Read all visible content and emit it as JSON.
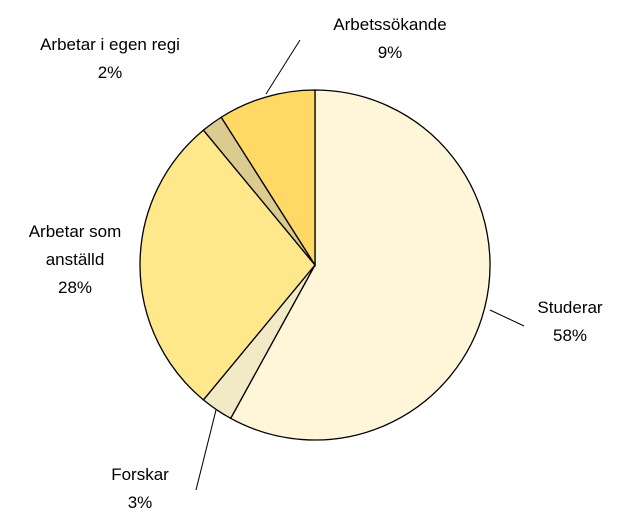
{
  "chart_data": {
    "type": "pie",
    "categories": [
      "Studerar",
      "Forskar",
      "Arbetar som anställd",
      "Arbetar i egen regi",
      "Arbetssökande"
    ],
    "values": [
      58,
      3,
      28,
      2,
      9
    ],
    "value_labels": [
      "58%",
      "3%",
      "28%",
      "2%",
      "9%"
    ],
    "colors": [
      "#fff5d8",
      "#f2e9c6",
      "#ffe78c",
      "#dccb8e",
      "#ffd966"
    ]
  }
}
